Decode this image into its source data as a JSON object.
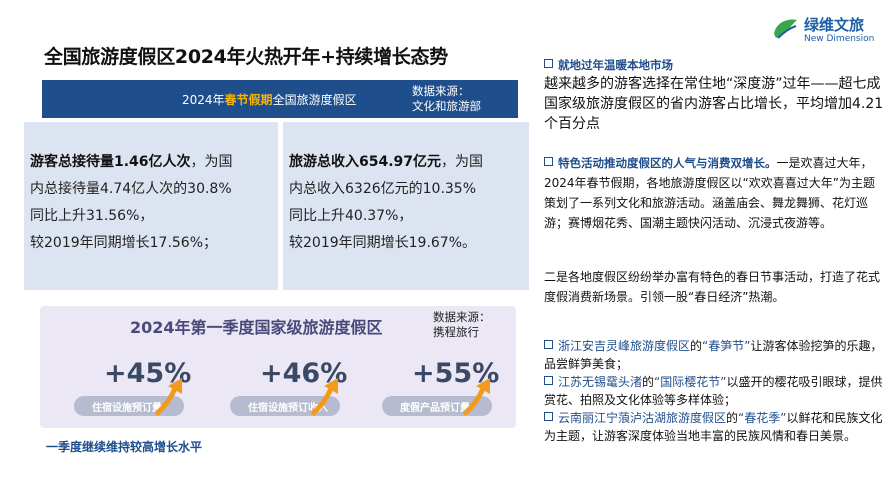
{
  "logo": {
    "cn": "绿维文旅",
    "en": "New Dimension"
  },
  "title": "全国旅游度假区2024年火热开年+持续增长态势",
  "banner": {
    "label_pre": "2024年",
    "label_hl": "春节假期",
    "label_post": "全国旅游度假区",
    "source_line1": "数据来源：",
    "source_line2": "文化和旅游部"
  },
  "card1": {
    "bold": "游客总接待量1.46亿人次",
    "line1_rest": "，为国",
    "line2": "内总接待量4.74亿人次的30.8%",
    "line3": "同比上升31.56%，",
    "line4": "较2019年同期增长17.56%；"
  },
  "card2": {
    "bold": "旅游总收入654.97亿元",
    "line1_rest": "，为国",
    "line2": "内总收入6326亿元的10.35%",
    "line3": "同比上升40.37%，",
    "line4": "较2019年同期增长19.67%。"
  },
  "quarter": {
    "title": "2024年第一季度国家级旅游度假区",
    "source_line1": "数据来源：",
    "source_line2": "携程旅行",
    "metrics": [
      {
        "value": "+45%",
        "label": "住宿设施预订量"
      },
      {
        "value": "+46%",
        "label": "住宿设施预订收入"
      },
      {
        "value": "+55%",
        "label": "度假产品预订量"
      }
    ],
    "caption": "一季度继续维持较高增长水平"
  },
  "right": {
    "head1": "就地过年温暖本地市场",
    "para1": "越来越多的游客选择在常住地“深度游”过年——超七成国家级旅游度假区的省内游客占比增长，平均增加4.21个百分点",
    "head2": "特色活动推动度假区的人气与消费双增长。",
    "para2": "一是欢喜过大年，2024年春节假期，各地旅游度假区以“欢欢喜喜过大年”为主题策划了一系列文化和旅游活动。涵盖庙会、舞龙舞狮、花灯巡游；赛博烟花秀、国潮主题快闪活动、沉浸式夜游等。",
    "para3": "二是各地度假区纷纷举办富有特色的春日节事活动，打造了花式度假消费新场景。引领一股“春日经济”热潮。",
    "items": [
      {
        "place": "浙江安吉灵峰旅游度假区",
        "mid": "的",
        "fest": "“春笋节”",
        "rest": "让游客体验挖笋的乐趣，品尝鲜笋美食；"
      },
      {
        "place": "江苏无锡鼋头渚",
        "mid": "的",
        "fest": "“国际樱花节”",
        "rest": "以盛开的樱花吸引眼球，提供赏花、拍照及文化体验等多样体验；"
      },
      {
        "place": "云南丽江宁蒗泸沽湖旅游度假区",
        "mid": "的",
        "fest": "“春花季”",
        "rest": "以鲜花和民族文化为主题，让游客深度体验当地丰富的民族风情和春日美景。"
      }
    ]
  }
}
